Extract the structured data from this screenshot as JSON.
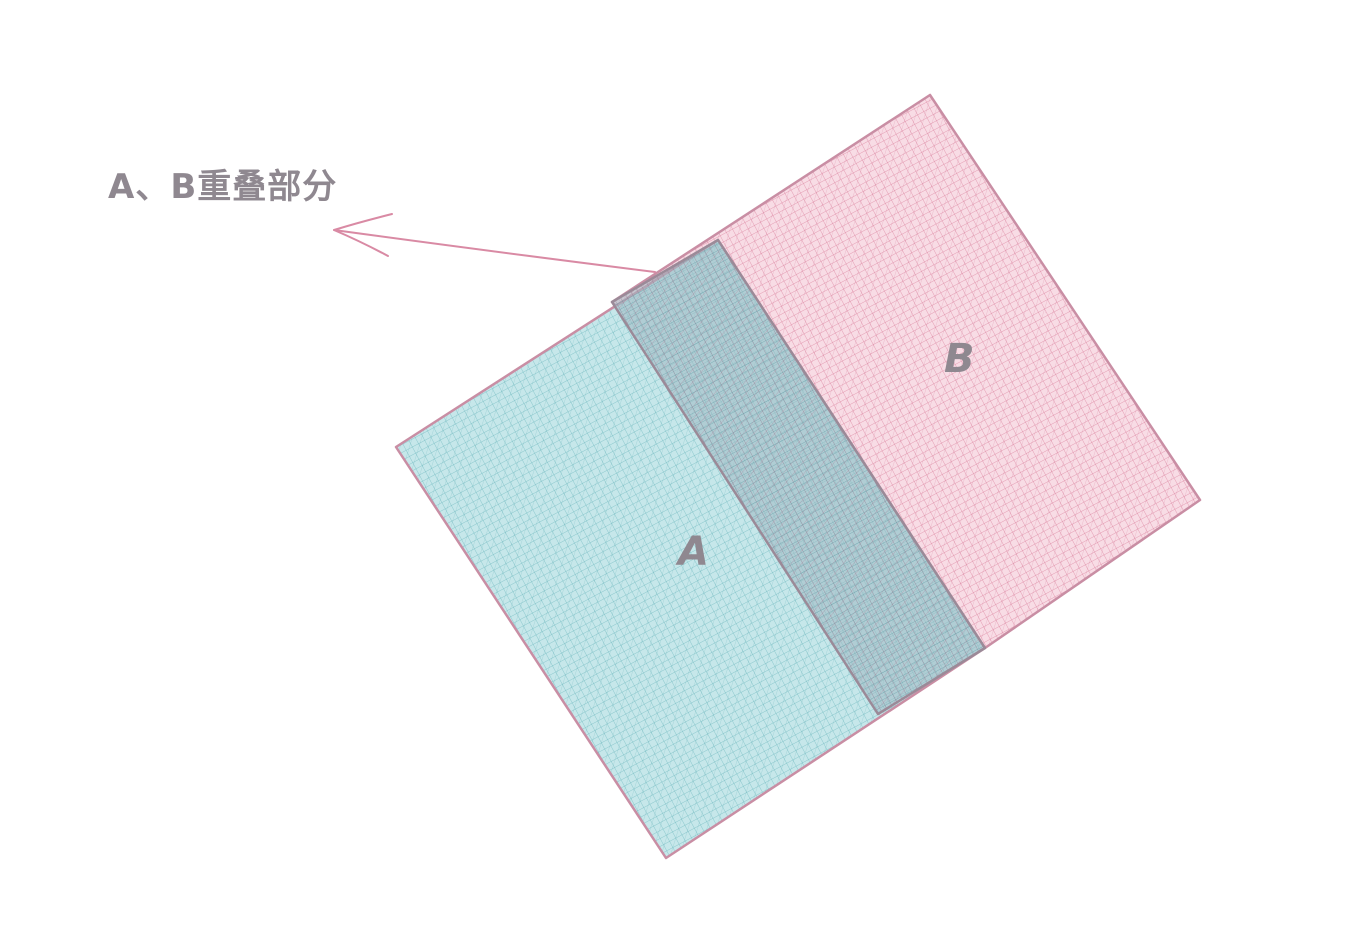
{
  "diagram": {
    "annotation": "A、B重叠部分",
    "rect_a_label": "A",
    "rect_b_label": "B",
    "colors": {
      "rect_a_fill": "#b6e0e3",
      "rect_a_hatch": "#6fb8bf",
      "rect_b_fill": "#f6d4de",
      "rect_b_hatch": "#d97f9c",
      "outline": "#c98ea4",
      "overlap_outline": "#9b8a98",
      "arrow": "#d98aa4",
      "text": "#8f8890"
    }
  }
}
